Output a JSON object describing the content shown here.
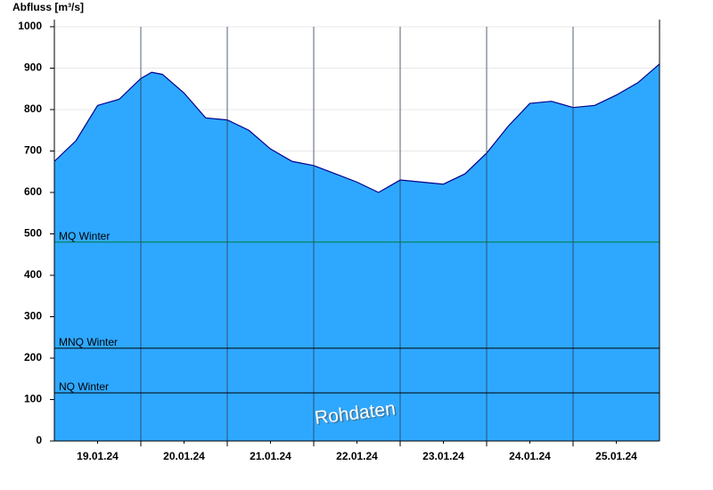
{
  "chart_data": {
    "type": "area",
    "title": "Abfluss [m³/s]",
    "x": [
      0,
      0.25,
      0.5,
      0.75,
      1,
      1.125,
      1.25,
      1.5,
      1.75,
      2,
      2.25,
      2.5,
      2.75,
      3,
      3.25,
      3.5,
      3.75,
      4,
      4.25,
      4.5,
      4.75,
      5,
      5.25,
      5.5,
      5.75,
      6,
      6.25,
      6.5,
      6.75,
      7
    ],
    "values": [
      675,
      725,
      810,
      825,
      875,
      890,
      885,
      840,
      780,
      775,
      750,
      705,
      675,
      665,
      645,
      625,
      600,
      630,
      625,
      620,
      645,
      695,
      760,
      815,
      820,
      805,
      810,
      835,
      865,
      910
    ],
    "color": "#2ea8ff",
    "line_color": "#00008b",
    "xlim": [
      0,
      7
    ],
    "xticks": [
      {
        "value": 0.5,
        "label": "19.01.24"
      },
      {
        "value": 1.5,
        "label": "20.01.24"
      },
      {
        "value": 2.5,
        "label": "21.01.24"
      },
      {
        "value": 3.5,
        "label": "22.01.24"
      },
      {
        "value": 4.5,
        "label": "23.01.24"
      },
      {
        "value": 5.5,
        "label": "24.01.24"
      },
      {
        "value": 6.5,
        "label": "25.01.24"
      }
    ],
    "xgrid_lines": [
      1,
      2,
      3,
      4,
      5,
      6
    ],
    "ylim": [
      0,
      1000
    ],
    "yticks": [
      0,
      100,
      200,
      300,
      400,
      500,
      600,
      700,
      800,
      900,
      1000
    ],
    "grid": true,
    "reference_lines": [
      {
        "name": "MQ Winter",
        "value": 480,
        "color": "#007a3d"
      },
      {
        "name": "MNQ Winter",
        "value": 224,
        "color": "#000000"
      },
      {
        "name": "NQ Winter",
        "value": 116,
        "color": "#000000"
      }
    ],
    "watermark": "Rohdaten"
  }
}
